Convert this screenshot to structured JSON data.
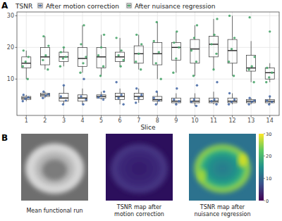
{
  "chart_data": [
    {
      "panel": "A",
      "type": "box",
      "legend_title": "TSNR",
      "x_label": "Slice",
      "categories": [
        1,
        2,
        3,
        4,
        5,
        6,
        7,
        8,
        9,
        10,
        11,
        12,
        13,
        14
      ],
      "ylim": [
        -1.5,
        31.2
      ],
      "yticks": [
        10,
        20,
        30
      ],
      "grid": true,
      "legend": "top",
      "series": [
        {
          "name": "After motion correction",
          "color": "#4a6da7",
          "low": [
            3,
            4,
            2,
            2,
            3.5,
            2,
            2.5,
            2,
            2,
            1.5,
            2,
            2,
            2,
            2
          ],
          "q1": [
            3.5,
            4.5,
            3,
            3,
            4,
            3.5,
            3.5,
            3,
            2.5,
            2.5,
            2.5,
            2.5,
            2.5,
            2.5
          ],
          "median": [
            4,
            5,
            4,
            4,
            4.5,
            4.5,
            4.5,
            3.5,
            3,
            3,
            3,
            3,
            3,
            3
          ],
          "q3": [
            4.5,
            5.5,
            5.5,
            5,
            5,
            5.5,
            5.5,
            4.5,
            4,
            4,
            4,
            4,
            3.5,
            3.5
          ],
          "high": [
            5,
            6,
            8,
            7,
            6,
            7,
            7,
            6,
            5.5,
            5.5,
            6,
            5.5,
            4,
            4.5
          ],
          "points": [
            [
              3,
              3.8,
              4.2,
              5
            ],
            [
              4,
              4.8,
              5.2,
              6
            ],
            [
              2,
              3.2,
              4.5,
              8
            ],
            [
              2,
              3.5,
              4.5,
              10
            ],
            [
              3.5,
              4.2,
              4.8,
              6
            ],
            [
              2,
              4,
              5,
              9
            ],
            [
              2.5,
              4,
              5,
              7
            ],
            [
              2,
              3.2,
              4,
              6
            ],
            [
              2,
              3,
              3.5,
              7
            ],
            [
              1.5,
              2.8,
              3.5,
              8
            ],
            [
              2,
              3,
              3.5,
              9
            ],
            [
              2,
              2.8,
              3.5,
              5.5
            ],
            [
              2,
              2.8,
              3.2,
              4
            ],
            [
              2,
              2.8,
              3.2,
              4.5
            ]
          ]
        },
        {
          "name": "After nuisance regression",
          "color": "#4aa56c",
          "low": [
            10,
            13,
            14,
            12,
            11,
            14,
            13,
            10,
            12,
            11,
            13,
            11,
            9,
            9
          ],
          "q1": [
            13.5,
            14.5,
            15.5,
            14,
            13.5,
            15.5,
            15,
            14.5,
            16,
            15,
            17,
            15,
            12.5,
            10
          ],
          "median": [
            15,
            17,
            17,
            16.5,
            17,
            17,
            18,
            18,
            20,
            19.5,
            21,
            19,
            13.5,
            12
          ],
          "q3": [
            17,
            20,
            18.5,
            20,
            20,
            18.5,
            20.5,
            21.5,
            21.5,
            22.5,
            23.5,
            22.5,
            17.5,
            13.5
          ],
          "high": [
            19,
            23.5,
            20,
            27,
            24,
            23,
            24,
            28,
            25,
            27,
            29,
            30,
            22,
            15
          ],
          "points": [
            [
              10,
              14,
              15.5,
              17,
              19
            ],
            [
              13,
              16,
              17.5,
              20.5,
              23.5
            ],
            [
              14,
              16.5,
              17,
              18.5,
              20
            ],
            [
              12,
              15,
              17,
              21,
              27
            ],
            [
              11,
              14,
              17.5,
              20,
              24
            ],
            [
              14,
              16,
              17.5,
              19,
              23
            ],
            [
              13,
              15.5,
              18,
              21,
              24
            ],
            [
              10,
              15,
              18.5,
              22,
              28
            ],
            [
              12,
              16.5,
              20,
              21.5,
              25
            ],
            [
              11,
              15.5,
              19,
              23,
              27
            ],
            [
              13,
              18,
              21,
              24,
              29
            ],
            [
              11,
              15.5,
              19.5,
              23,
              30
            ],
            [
              9,
              13,
              14,
              17,
              29.5
            ],
            [
              9,
              10.5,
              12,
              13.5,
              25
            ]
          ]
        }
      ]
    },
    {
      "panel": "B",
      "type": "image",
      "captions": [
        [
          "Mean functional run"
        ],
        [
          "TSNR map after",
          "motion correction"
        ],
        [
          "TSNR map after",
          "nuisance regression"
        ]
      ],
      "colorbar": {
        "range": [
          0,
          30
        ],
        "ticks": [
          0,
          10,
          20,
          30
        ]
      }
    }
  ]
}
